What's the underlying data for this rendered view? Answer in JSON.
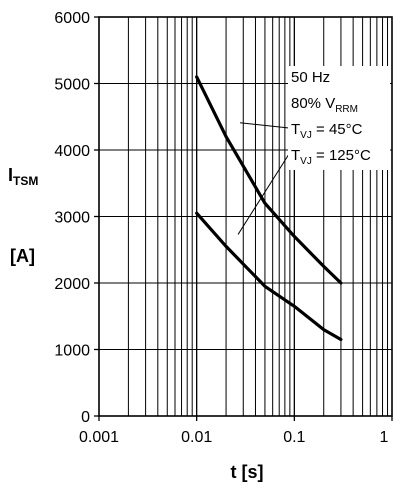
{
  "chart_data": {
    "type": "line",
    "xscale": "log",
    "xlim": [
      0.001,
      1
    ],
    "ylim": [
      0,
      6000
    ],
    "grid": true,
    "x_tick_labels": [
      "0.001",
      "0.01",
      "0.1",
      "1"
    ],
    "y_tick_labels": [
      "0",
      "1000",
      "2000",
      "3000",
      "4000",
      "5000",
      "6000"
    ],
    "ylabel_main": "I",
    "ylabel_sub": "TSM",
    "ylabel_unit": "[A]",
    "xlabel": "t  [s]",
    "legend_position": "top-right",
    "legend": {
      "line1": "50 Hz",
      "line2_prefix": "80% V",
      "line2_sub": "RRM",
      "line3_main": "T",
      "line3_sub": "VJ",
      "line3_value": " =   45°C",
      "line4_main": "T",
      "line4_sub": "VJ",
      "line4_value": " = 125°C"
    },
    "series": [
      {
        "key": "tvj45",
        "color": "#000000",
        "points": [
          [
            0.01,
            5100
          ],
          [
            0.02,
            4200
          ],
          [
            0.05,
            3200
          ],
          [
            0.1,
            2700
          ],
          [
            0.2,
            2250
          ],
          [
            0.3,
            2000
          ]
        ]
      },
      {
        "key": "tvj125",
        "color": "#000000",
        "points": [
          [
            0.01,
            3050
          ],
          [
            0.02,
            2550
          ],
          [
            0.05,
            1950
          ],
          [
            0.1,
            1650
          ],
          [
            0.2,
            1300
          ],
          [
            0.3,
            1150
          ]
        ]
      }
    ]
  }
}
